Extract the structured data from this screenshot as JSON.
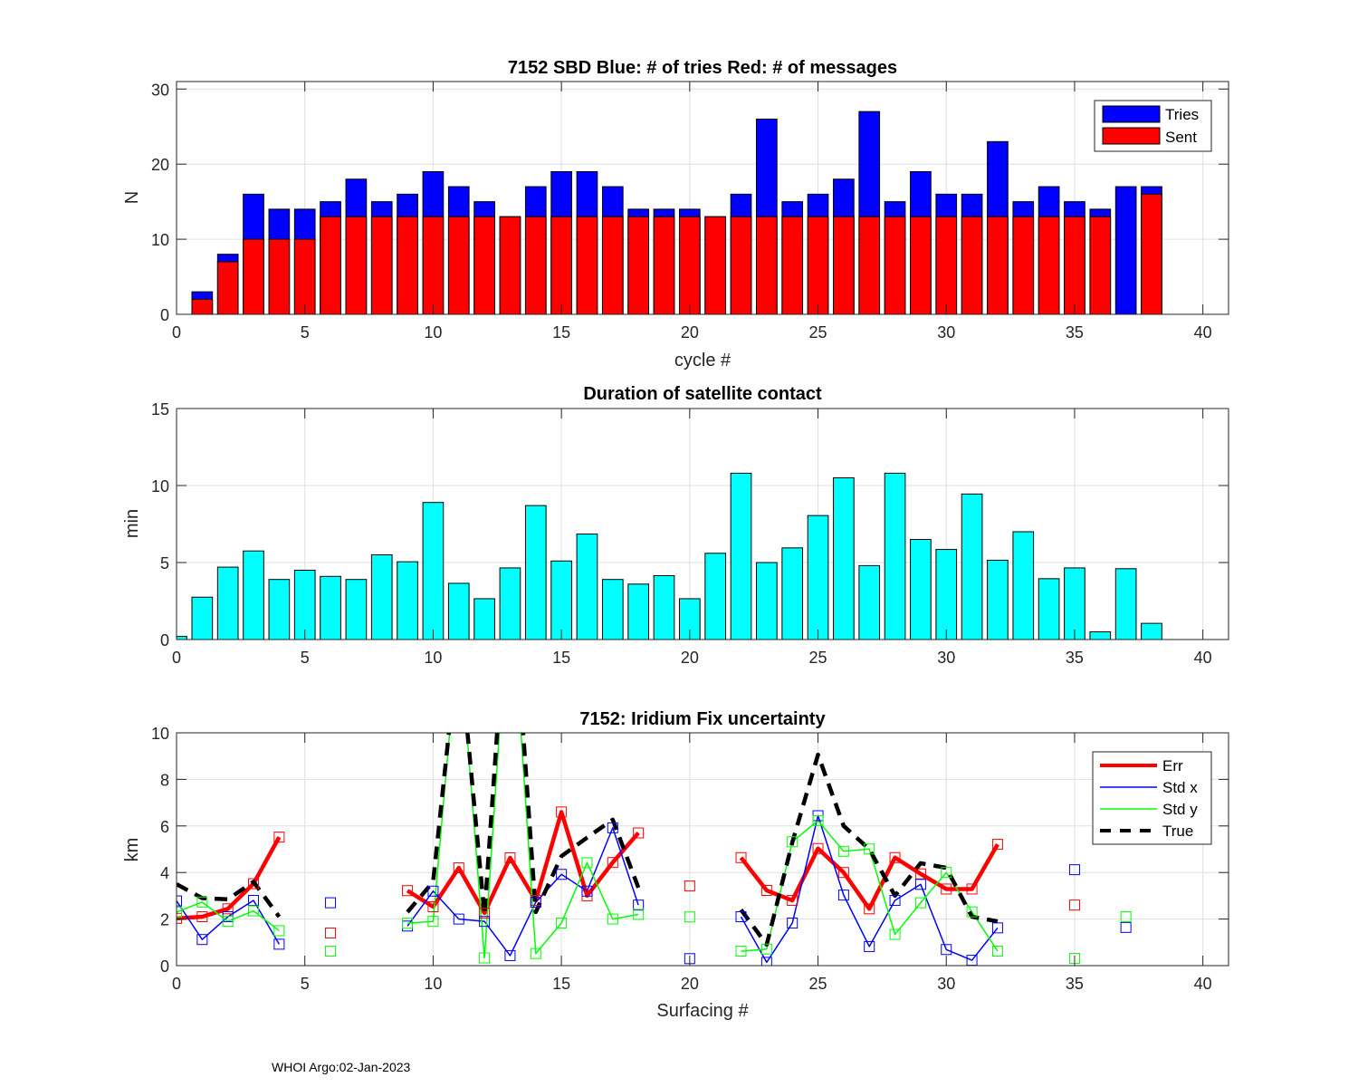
{
  "footer": "WHOI Argo:02-Jan-2023",
  "chart_data": [
    {
      "type": "bar",
      "stacked": "overlay",
      "title": "7152 SBD  Blue: # of tries   Red: # of messages",
      "xlabel": "cycle #",
      "ylabel": "N",
      "xlim": [
        0,
        41
      ],
      "ylim": [
        0,
        31
      ],
      "xticks": [
        0,
        5,
        10,
        15,
        20,
        25,
        30,
        35,
        40
      ],
      "yticks": [
        0,
        10,
        20,
        30
      ],
      "grid": true,
      "legend": {
        "placement": "top-right",
        "entries": [
          "Tries",
          "Sent"
        ]
      },
      "x": [
        1,
        2,
        3,
        4,
        5,
        6,
        7,
        8,
        9,
        10,
        11,
        12,
        13,
        14,
        15,
        16,
        17,
        18,
        19,
        20,
        21,
        22,
        23,
        24,
        25,
        26,
        27,
        28,
        29,
        30,
        31,
        32,
        33,
        34,
        35,
        36,
        37,
        38
      ],
      "series": [
        {
          "name": "Tries",
          "color": "#0000ff",
          "values": [
            3,
            8,
            16,
            14,
            14,
            15,
            18,
            15,
            16,
            19,
            17,
            15,
            13,
            17,
            19,
            19,
            17,
            14,
            14,
            14,
            13,
            16,
            26,
            15,
            16,
            18,
            27,
            15,
            19,
            16,
            16,
            23,
            15,
            17,
            15,
            14,
            17,
            17
          ]
        },
        {
          "name": "Sent",
          "color": "#ff0000",
          "values": [
            2,
            7,
            10,
            10,
            10,
            13,
            13,
            13,
            13,
            13,
            13,
            13,
            13,
            13,
            13,
            13,
            13,
            13,
            13,
            13,
            13,
            13,
            13,
            13,
            13,
            13,
            13,
            13,
            13,
            13,
            13,
            13,
            13,
            13,
            13,
            13,
            0,
            16
          ]
        }
      ]
    },
    {
      "type": "bar",
      "title": "Duration of satellite contact",
      "xlabel": "",
      "ylabel": "min",
      "xlim": [
        0,
        41
      ],
      "ylim": [
        0,
        15
      ],
      "xticks": [
        0,
        5,
        10,
        15,
        20,
        25,
        30,
        35,
        40
      ],
      "yticks": [
        0,
        5,
        10,
        15
      ],
      "grid": true,
      "color": "#00ffff",
      "x": [
        0,
        1,
        2,
        3,
        4,
        5,
        6,
        7,
        8,
        9,
        10,
        11,
        12,
        13,
        14,
        15,
        16,
        17,
        18,
        19,
        20,
        21,
        22,
        23,
        24,
        25,
        26,
        27,
        28,
        29,
        30,
        31,
        32,
        33,
        34,
        35,
        36,
        37,
        38
      ],
      "values": [
        0.2,
        2.75,
        4.7,
        5.75,
        3.9,
        4.5,
        4.1,
        3.9,
        5.5,
        5.05,
        8.9,
        3.65,
        2.65,
        4.65,
        8.7,
        5.1,
        6.85,
        3.9,
        3.6,
        4.15,
        2.65,
        5.6,
        10.8,
        5.0,
        5.95,
        8.05,
        10.5,
        4.8,
        10.8,
        6.5,
        5.85,
        9.45,
        5.15,
        7.0,
        3.95,
        4.65,
        0.5,
        4.6,
        1.05
      ]
    },
    {
      "type": "line",
      "title": "7152: Iridium Fix uncertainty",
      "xlabel": "Surfacing #",
      "ylabel": "km",
      "xlim": [
        0,
        41
      ],
      "ylim": [
        0,
        10
      ],
      "xticks": [
        0,
        5,
        10,
        15,
        20,
        25,
        30,
        35,
        40
      ],
      "yticks": [
        0,
        2,
        4,
        6,
        8,
        10
      ],
      "grid": true,
      "legend": {
        "placement": "top-right",
        "entries": [
          "Err",
          "Std x",
          "Std y",
          "True"
        ]
      },
      "x": [
        0,
        1,
        2,
        3,
        4,
        5,
        6,
        7,
        8,
        9,
        10,
        11,
        12,
        13,
        14,
        15,
        16,
        17,
        18,
        19,
        20,
        21,
        22,
        23,
        24,
        25,
        26,
        27,
        28,
        29,
        30,
        31,
        32,
        33,
        34,
        35,
        36,
        37
      ],
      "series": [
        {
          "name": "Err",
          "color": "#ff0000",
          "style": "solid-thick",
          "markers": true,
          "values": [
            2.03,
            2.1,
            2.44,
            3.52,
            5.52,
            null,
            1.4,
            null,
            null,
            3.22,
            2.53,
            4.2,
            2.26,
            4.63,
            2.8,
            6.6,
            3.0,
            4.43,
            5.7,
            null,
            3.42,
            null,
            4.64,
            3.23,
            2.8,
            5.03,
            4.0,
            2.44,
            4.64,
            3.94,
            3.29,
            3.29,
            5.21,
            null,
            null,
            2.6,
            null,
            null
          ]
        },
        {
          "name": "Std x",
          "color": "#0000ff",
          "style": "solid",
          "markers": true,
          "values": [
            2.78,
            1.12,
            2.1,
            2.8,
            0.92,
            null,
            2.7,
            null,
            null,
            1.7,
            3.2,
            2.0,
            1.9,
            0.43,
            2.72,
            3.92,
            3.2,
            5.92,
            2.6,
            null,
            0.3,
            null,
            2.1,
            0.14,
            1.83,
            6.44,
            3.03,
            0.82,
            2.8,
            3.49,
            0.69,
            0.23,
            1.62,
            null,
            null,
            4.12,
            null,
            1.64
          ]
        },
        {
          "name": "Std y",
          "color": "#00ff00",
          "style": "solid",
          "markers": true,
          "values": [
            2.3,
            2.73,
            1.9,
            2.35,
            1.5,
            null,
            0.62,
            null,
            null,
            1.82,
            1.9,
            14.5,
            0.33,
            17.0,
            0.52,
            1.83,
            4.42,
            2.0,
            2.2,
            null,
            2.09,
            null,
            0.62,
            0.71,
            5.32,
            6.23,
            4.91,
            5.01,
            1.34,
            2.7,
            4.0,
            2.31,
            0.62,
            null,
            null,
            0.31,
            null,
            2.1
          ]
        },
        {
          "name": "True",
          "color": "#000000",
          "style": "dashed",
          "markers": false,
          "values": [
            3.5,
            2.9,
            2.85,
            3.6,
            2.1,
            null,
            null,
            null,
            null,
            2.3,
            3.6,
            14.0,
            2.2,
            18.0,
            2.3,
            4.7,
            5.5,
            6.27,
            3.35,
            null,
            null,
            null,
            2.4,
            0.9,
            5.3,
            9.06,
            6.0,
            5.0,
            3.0,
            4.4,
            4.2,
            2.1,
            1.9,
            null,
            null,
            null,
            null,
            null
          ]
        }
      ]
    }
  ]
}
